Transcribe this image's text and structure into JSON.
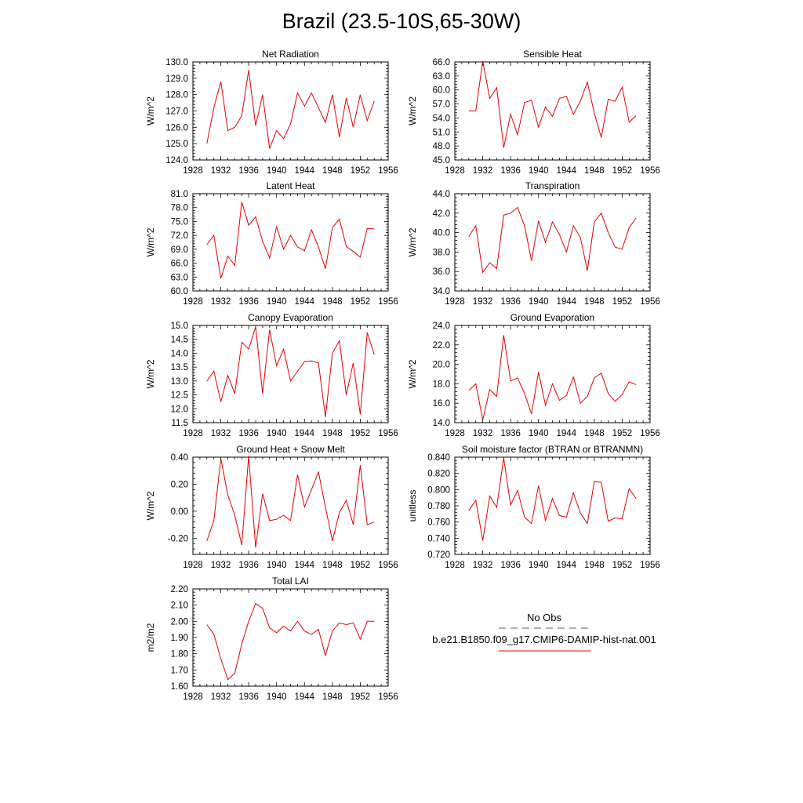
{
  "title": "Brazil (23.5-10S,65-30W)",
  "legend": {
    "entries": [
      {
        "label": "No Obs",
        "style": "dashed",
        "color": "#5a5aa0"
      },
      {
        "label": "b.e21.B1850.f09_g17.CMIP6-DAMIP-hist-nat.001",
        "style": "solid",
        "color": "#e00000"
      }
    ]
  },
  "chart_data": [
    {
      "type": "line",
      "title": "Net Radiation",
      "xlabel": "",
      "ylabel": "W/m^2",
      "xlim": [
        1928,
        1956
      ],
      "ylim": [
        124.0,
        130.0
      ],
      "xticks": [
        "1928",
        "1932",
        "1936",
        "1940",
        "1944",
        "1948",
        "1952",
        "1956"
      ],
      "yticks": [
        "124.0",
        "125.0",
        "126.0",
        "127.0",
        "128.0",
        "129.0",
        "130.0"
      ],
      "x": [
        1930,
        1931,
        1932,
        1933,
        1934,
        1935,
        1936,
        1937,
        1938,
        1939,
        1940,
        1941,
        1942,
        1943,
        1944,
        1945,
        1946,
        1947,
        1948,
        1949,
        1950,
        1951,
        1952,
        1953,
        1954
      ],
      "series": [
        {
          "name": "b.e21.B1850.f09_g17.CMIP6-DAMIP-hist-nat.001",
          "color": "#e00000",
          "values": [
            125.0,
            127.2,
            128.8,
            125.8,
            126.0,
            126.7,
            129.5,
            126.1,
            128.0,
            124.7,
            125.8,
            125.3,
            126.2,
            128.1,
            127.3,
            128.1,
            127.2,
            126.3,
            128.0,
            125.4,
            127.8,
            126.0,
            128.0,
            126.4,
            127.6
          ]
        }
      ]
    },
    {
      "type": "line",
      "title": "Sensible Heat",
      "xlabel": "",
      "ylabel": "W/m^2",
      "xlim": [
        1928,
        1956
      ],
      "ylim": [
        45.0,
        66.0
      ],
      "xticks": [
        "1928",
        "1932",
        "1936",
        "1940",
        "1944",
        "1948",
        "1952",
        "1956"
      ],
      "yticks": [
        "45.0",
        "48.0",
        "51.0",
        "54.0",
        "57.0",
        "60.0",
        "63.0",
        "66.0"
      ],
      "x": [
        1930,
        1931,
        1932,
        1933,
        1934,
        1935,
        1936,
        1937,
        1938,
        1939,
        1940,
        1941,
        1942,
        1943,
        1944,
        1945,
        1946,
        1947,
        1948,
        1949,
        1950,
        1951,
        1952,
        1953,
        1954
      ],
      "series": [
        {
          "name": "b.e21.B1850.f09_g17.CMIP6-DAMIP-hist-nat.001",
          "color": "#e00000",
          "values": [
            55.5,
            55.5,
            66.2,
            58.2,
            60.5,
            47.6,
            54.8,
            50.4,
            57.3,
            57.8,
            52.0,
            56.4,
            54.3,
            58.2,
            58.6,
            54.8,
            57.6,
            61.7,
            55.0,
            49.8,
            58.0,
            57.6,
            60.6,
            53.1,
            54.5
          ]
        }
      ]
    },
    {
      "type": "line",
      "title": "Latent Heat",
      "xlabel": "",
      "ylabel": "W/m^2",
      "xlim": [
        1928,
        1956
      ],
      "ylim": [
        60.0,
        81.0
      ],
      "xticks": [
        "1928",
        "1932",
        "1936",
        "1940",
        "1944",
        "1948",
        "1952",
        "1956"
      ],
      "yticks": [
        "60.0",
        "63.0",
        "66.0",
        "69.0",
        "72.0",
        "75.0",
        "78.0",
        "81.0"
      ],
      "x": [
        1930,
        1931,
        1932,
        1933,
        1934,
        1935,
        1936,
        1937,
        1938,
        1939,
        1940,
        1941,
        1942,
        1943,
        1944,
        1945,
        1946,
        1947,
        1948,
        1949,
        1950,
        1951,
        1952,
        1953,
        1954
      ],
      "series": [
        {
          "name": "b.e21.B1850.f09_g17.CMIP6-DAMIP-hist-nat.001",
          "color": "#e00000",
          "values": [
            70.0,
            72.0,
            62.7,
            67.5,
            65.5,
            79.2,
            74.2,
            76.0,
            70.7,
            67.1,
            73.9,
            69.0,
            72.0,
            69.5,
            68.7,
            73.2,
            69.5,
            64.8,
            73.7,
            75.5,
            69.6,
            68.5,
            67.3,
            73.5,
            73.4
          ]
        }
      ]
    },
    {
      "type": "line",
      "title": "Transpiration",
      "xlabel": "",
      "ylabel": "W/m^2",
      "xlim": [
        1928,
        1956
      ],
      "ylim": [
        34.0,
        44.0
      ],
      "xticks": [
        "1928",
        "1932",
        "1936",
        "1940",
        "1944",
        "1948",
        "1952",
        "1956"
      ],
      "yticks": [
        "34.0",
        "36.0",
        "38.0",
        "40.0",
        "42.0",
        "44.0"
      ],
      "x": [
        1930,
        1931,
        1932,
        1933,
        1934,
        1935,
        1936,
        1937,
        1938,
        1939,
        1940,
        1941,
        1942,
        1943,
        1944,
        1945,
        1946,
        1947,
        1948,
        1949,
        1950,
        1951,
        1952,
        1953,
        1954
      ],
      "series": [
        {
          "name": "b.e21.B1850.f09_g17.CMIP6-DAMIP-hist-nat.001",
          "color": "#e00000",
          "values": [
            39.6,
            40.7,
            35.9,
            36.9,
            36.3,
            41.8,
            42.0,
            42.6,
            40.7,
            37.1,
            41.2,
            39.0,
            41.1,
            39.8,
            38.0,
            40.7,
            39.5,
            36.1,
            41.1,
            42.0,
            40.0,
            38.5,
            38.3,
            40.5,
            41.5
          ]
        }
      ]
    },
    {
      "type": "line",
      "title": "Canopy Evaporation",
      "xlabel": "",
      "ylabel": "W/m^2",
      "xlim": [
        1928,
        1956
      ],
      "ylim": [
        11.5,
        15.0
      ],
      "xticks": [
        "1928",
        "1932",
        "1936",
        "1940",
        "1944",
        "1948",
        "1952",
        "1956"
      ],
      "yticks": [
        "11.5",
        "12.0",
        "12.5",
        "13.0",
        "13.5",
        "14.0",
        "14.5",
        "15.0"
      ],
      "x": [
        1930,
        1931,
        1932,
        1933,
        1934,
        1935,
        1936,
        1937,
        1938,
        1939,
        1940,
        1941,
        1942,
        1943,
        1944,
        1945,
        1946,
        1947,
        1948,
        1949,
        1950,
        1951,
        1952,
        1953,
        1954
      ],
      "series": [
        {
          "name": "b.e21.B1850.f09_g17.CMIP6-DAMIP-hist-nat.001",
          "color": "#e00000",
          "values": [
            13.0,
            13.35,
            12.25,
            13.2,
            12.55,
            14.4,
            14.15,
            14.95,
            12.55,
            14.85,
            13.55,
            14.15,
            13.0,
            13.35,
            13.7,
            13.72,
            13.65,
            11.7,
            14.0,
            14.45,
            12.5,
            13.65,
            11.8,
            14.75,
            13.95
          ]
        }
      ]
    },
    {
      "type": "line",
      "title": "Ground Evaporation",
      "xlabel": "",
      "ylabel": "W/m^2",
      "xlim": [
        1928,
        1956
      ],
      "ylim": [
        14.0,
        24.0
      ],
      "xticks": [
        "1928",
        "1932",
        "1936",
        "1940",
        "1944",
        "1948",
        "1952",
        "1956"
      ],
      "yticks": [
        "14.0",
        "16.0",
        "18.0",
        "20.0",
        "22.0",
        "24.0"
      ],
      "x": [
        1930,
        1931,
        1932,
        1933,
        1934,
        1935,
        1936,
        1937,
        1938,
        1939,
        1940,
        1941,
        1942,
        1943,
        1944,
        1945,
        1946,
        1947,
        1948,
        1949,
        1950,
        1951,
        1952,
        1953,
        1954
      ],
      "series": [
        {
          "name": "b.e21.B1850.f09_g17.CMIP6-DAMIP-hist-nat.001",
          "color": "#e00000",
          "values": [
            17.3,
            18.0,
            14.3,
            17.4,
            16.7,
            23.0,
            18.3,
            18.6,
            17.0,
            14.9,
            19.2,
            15.8,
            18.0,
            16.3,
            16.8,
            18.7,
            16.0,
            16.7,
            18.6,
            19.1,
            17.0,
            16.2,
            16.9,
            18.2,
            17.9
          ]
        }
      ]
    },
    {
      "type": "line",
      "title": "Ground Heat + Snow Melt",
      "xlabel": "",
      "ylabel": "W/m^2",
      "xlim": [
        1928,
        1956
      ],
      "ylim": [
        -0.32,
        0.4
      ],
      "xticks": [
        "1928",
        "1932",
        "1936",
        "1940",
        "1944",
        "1948",
        "1952",
        "1956"
      ],
      "yticks": [
        "-0.20",
        "0.00",
        "0.20",
        "0.40"
      ],
      "yticks_values": [
        -0.2,
        0.0,
        0.2,
        0.4
      ],
      "x": [
        1930,
        1931,
        1932,
        1933,
        1934,
        1935,
        1936,
        1937,
        1938,
        1939,
        1940,
        1941,
        1942,
        1943,
        1944,
        1945,
        1946,
        1947,
        1948,
        1949,
        1950,
        1951,
        1952,
        1953,
        1954
      ],
      "series": [
        {
          "name": "b.e21.B1850.f09_g17.CMIP6-DAMIP-hist-nat.001",
          "color": "#e00000",
          "values": [
            -0.22,
            -0.07,
            0.39,
            0.12,
            -0.03,
            -0.25,
            0.41,
            -0.27,
            0.13,
            -0.07,
            -0.06,
            -0.03,
            -0.07,
            0.27,
            0.03,
            0.16,
            0.29,
            0.03,
            -0.22,
            -0.01,
            0.08,
            -0.1,
            0.34,
            -0.1,
            -0.08
          ]
        }
      ]
    },
    {
      "type": "line",
      "title": "Soil moisture factor (BTRAN or BTRANMN)",
      "xlabel": "",
      "ylabel": "unitless",
      "xlim": [
        1928,
        1956
      ],
      "ylim": [
        0.72,
        0.84
      ],
      "xticks": [
        "1928",
        "1932",
        "1936",
        "1940",
        "1944",
        "1948",
        "1952",
        "1956"
      ],
      "yticks": [
        "0.720",
        "0.740",
        "0.760",
        "0.780",
        "0.800",
        "0.820",
        "0.840"
      ],
      "x": [
        1930,
        1931,
        1932,
        1933,
        1934,
        1935,
        1936,
        1937,
        1938,
        1939,
        1940,
        1941,
        1942,
        1943,
        1944,
        1945,
        1946,
        1947,
        1948,
        1949,
        1950,
        1951,
        1952,
        1953,
        1954
      ],
      "series": [
        {
          "name": "b.e21.B1850.f09_g17.CMIP6-DAMIP-hist-nat.001",
          "color": "#e00000",
          "values": [
            0.774,
            0.787,
            0.737,
            0.792,
            0.778,
            0.839,
            0.781,
            0.799,
            0.766,
            0.758,
            0.805,
            0.762,
            0.789,
            0.768,
            0.766,
            0.796,
            0.771,
            0.758,
            0.81,
            0.809,
            0.761,
            0.765,
            0.764,
            0.801,
            0.789
          ]
        }
      ]
    },
    {
      "type": "line",
      "title": "Total LAI",
      "xlabel": "",
      "ylabel": "m2/m2",
      "xlim": [
        1928,
        1956
      ],
      "ylim": [
        1.6,
        2.2
      ],
      "xticks": [
        "1928",
        "1932",
        "1936",
        "1940",
        "1944",
        "1948",
        "1952",
        "1956"
      ],
      "yticks": [
        "1.60",
        "1.70",
        "1.80",
        "1.90",
        "2.00",
        "2.10",
        "2.20"
      ],
      "x": [
        1930,
        1931,
        1932,
        1933,
        1934,
        1935,
        1936,
        1937,
        1938,
        1939,
        1940,
        1941,
        1942,
        1943,
        1944,
        1945,
        1946,
        1947,
        1948,
        1949,
        1950,
        1951,
        1952,
        1953,
        1954
      ],
      "series": [
        {
          "name": "b.e21.B1850.f09_g17.CMIP6-DAMIP-hist-nat.001",
          "color": "#e00000",
          "values": [
            1.98,
            1.92,
            1.77,
            1.64,
            1.68,
            1.86,
            2.0,
            2.11,
            2.08,
            1.96,
            1.93,
            1.97,
            1.94,
            2.0,
            1.94,
            1.92,
            1.95,
            1.79,
            1.94,
            1.99,
            1.98,
            1.99,
            1.89,
            2.0,
            2.0
          ]
        }
      ]
    }
  ]
}
